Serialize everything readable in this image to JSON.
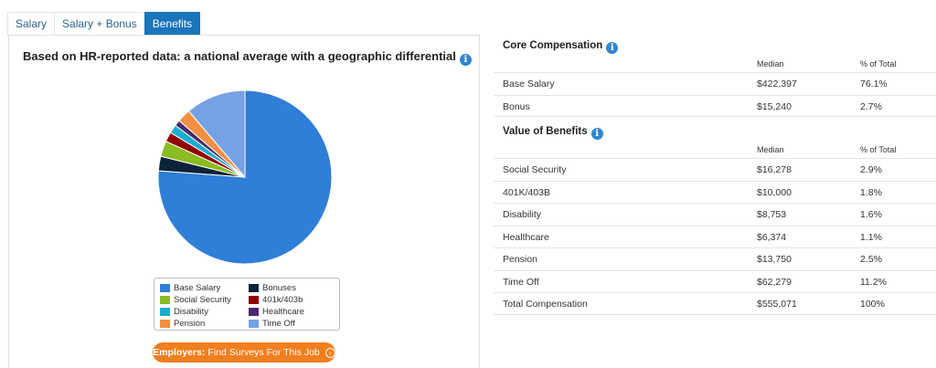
{
  "tabs": [
    {
      "label": "Salary",
      "active": false
    },
    {
      "label": "Salary + Bonus",
      "active": false
    },
    {
      "label": "Benefits",
      "active": true
    }
  ],
  "chart_panel": {
    "title": "Based on HR-reported data: a national average with a geographic differential",
    "info_icon": "info-icon",
    "cta_bold": "Employers:",
    "cta_text": "Find Surveys For This Job",
    "cta_icon": "arrow-right-circle-icon"
  },
  "chart_data": {
    "type": "pie",
    "start": "12 o'clock, clockwise",
    "legend_position": "bottom",
    "slices": [
      {
        "label": "Base Salary",
        "value": 76.1,
        "color": "#2f7ed8"
      },
      {
        "label": "Bonuses",
        "value": 2.7,
        "color": "#0d233a"
      },
      {
        "label": "Social Security",
        "value": 2.9,
        "color": "#8bbc21"
      },
      {
        "label": "401k/403b",
        "value": 1.8,
        "color": "#910000"
      },
      {
        "label": "Disability",
        "value": 1.6,
        "color": "#1aadce"
      },
      {
        "label": "Healthcare",
        "value": 1.1,
        "color": "#492970"
      },
      {
        "label": "Pension",
        "value": 2.5,
        "color": "#f28f43"
      },
      {
        "label": "Time Off",
        "value": 11.2,
        "color": "#77a1e5"
      }
    ],
    "legend": [
      {
        "label": "Base Salary",
        "color": "#2f7ed8"
      },
      {
        "label": "Bonuses",
        "color": "#0d233a"
      },
      {
        "label": "Social Security",
        "color": "#8bbc21"
      },
      {
        "label": "401k/403b",
        "color": "#910000"
      },
      {
        "label": "Disability",
        "color": "#1aadce"
      },
      {
        "label": "Healthcare",
        "color": "#492970"
      },
      {
        "label": "Pension",
        "color": "#f28f43"
      },
      {
        "label": "Time Off",
        "color": "#77a1e5"
      }
    ]
  },
  "core": {
    "title": "Core Compensation",
    "col_median": "Median",
    "col_pct": "% of Total",
    "rows": [
      {
        "label": "Base Salary",
        "median": "$422,397",
        "pct": "76.1%"
      },
      {
        "label": "Bonus",
        "median": "$15,240",
        "pct": "2.7%"
      }
    ]
  },
  "benefits": {
    "title": "Value of Benefits",
    "col_median": "Median",
    "col_pct": "% of Total",
    "rows": [
      {
        "label": "Social Security",
        "median": "$16,278",
        "pct": "2.9%"
      },
      {
        "label": "401K/403B",
        "median": "$10,000",
        "pct": "1.8%"
      },
      {
        "label": "Disability",
        "median": "$8,753",
        "pct": "1.6%"
      },
      {
        "label": "Healthcare",
        "median": "$6,374",
        "pct": "1.1%"
      },
      {
        "label": "Pension",
        "median": "$13,750",
        "pct": "2.5%"
      },
      {
        "label": "Time Off",
        "median": "$62,279",
        "pct": "11.2%"
      },
      {
        "label": "Total Compensation",
        "median": "$555,071",
        "pct": "100%"
      }
    ]
  }
}
